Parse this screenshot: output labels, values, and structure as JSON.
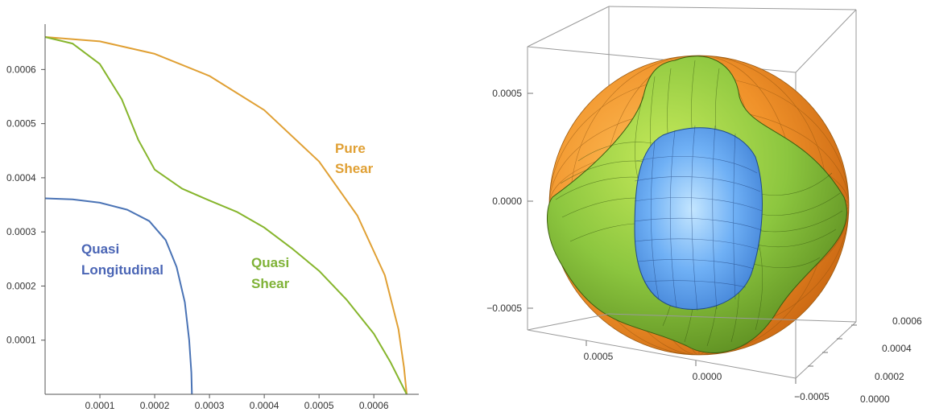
{
  "chart_data": [
    {
      "type": "line",
      "title": "",
      "xlabel": "",
      "ylabel": "",
      "xlim": [
        0,
        0.00066
      ],
      "ylim": [
        0,
        0.00066
      ],
      "grid": false,
      "xticks": [
        "0.0001",
        "0.0002",
        "0.0003",
        "0.0004",
        "0.0005",
        "0.0006"
      ],
      "yticks": [
        "0.0001",
        "0.0002",
        "0.0003",
        "0.0004",
        "0.0005",
        "0.0006"
      ],
      "series": [
        {
          "name": "Pure Shear",
          "label_lines": [
            "Pure",
            "Shear"
          ],
          "color": "#e0a034",
          "points": [
            [
              0,
              0.00066
            ],
            [
              0.0001,
              0.000652
            ],
            [
              0.0002,
              0.000629
            ],
            [
              0.0003,
              0.000588
            ],
            [
              0.0004,
              0.000525
            ],
            [
              0.0005,
              0.00043
            ],
            [
              0.00057,
              0.00033
            ],
            [
              0.00062,
              0.00022
            ],
            [
              0.000645,
              0.00012
            ],
            [
              0.000655,
              5e-05
            ],
            [
              0.00066,
              0
            ]
          ]
        },
        {
          "name": "Quasi Shear",
          "label_lines": [
            "Quasi",
            "Shear"
          ],
          "color": "#86b52c",
          "points": [
            [
              0,
              0.00066
            ],
            [
              5e-05,
              0.000648
            ],
            [
              0.0001,
              0.00061
            ],
            [
              0.00014,
              0.000545
            ],
            [
              0.00017,
              0.00047
            ],
            [
              0.0002,
              0.000415
            ],
            [
              0.00025,
              0.00038
            ],
            [
              0.0003,
              0.000358
            ],
            [
              0.00035,
              0.000337
            ],
            [
              0.0004,
              0.000308
            ],
            [
              0.00045,
              0.00027
            ],
            [
              0.0005,
              0.000228
            ],
            [
              0.00055,
              0.000175
            ],
            [
              0.0006,
              0.000112
            ],
            [
              0.00063,
              6e-05
            ],
            [
              0.00066,
              0
            ]
          ]
        },
        {
          "name": "Quasi Longitudinal",
          "label_lines": [
            "Quasi",
            "Longitudinal"
          ],
          "color": "#4a73b5",
          "points": [
            [
              0,
              0.000362
            ],
            [
              5e-05,
              0.00036
            ],
            [
              0.0001,
              0.000354
            ],
            [
              0.00015,
              0.000341
            ],
            [
              0.00019,
              0.00032
            ],
            [
              0.00022,
              0.000285
            ],
            [
              0.00024,
              0.000235
            ],
            [
              0.000255,
              0.00017
            ],
            [
              0.000263,
              0.0001
            ],
            [
              0.000267,
              4e-05
            ],
            [
              0.000268,
              0
            ]
          ]
        }
      ]
    },
    {
      "type": "surface3d",
      "title": "",
      "surfaces": [
        {
          "name": "Pure Shear",
          "color": "#f0922a"
        },
        {
          "name": "Quasi Shear",
          "color": "#8cc63f"
        },
        {
          "name": "Quasi Longitudinal",
          "color": "#5b9bea"
        }
      ],
      "z_ticks": [
        "0.0005",
        "0.0000",
        "−0.0005"
      ],
      "x_ticks": [
        "0.0005",
        "0.0000",
        "−0.0005"
      ],
      "y_ticks": [
        "0.0006",
        "0.0004",
        "0.0002",
        "0.0000"
      ]
    }
  ]
}
